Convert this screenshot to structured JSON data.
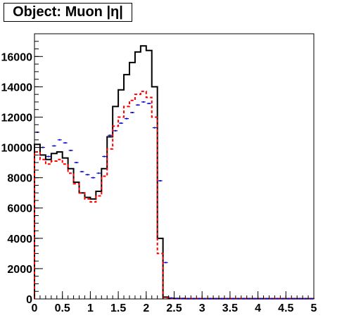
{
  "chart_data": {
    "type": "histogram",
    "title": "Object: Muon |η|",
    "xlabel": "",
    "ylabel": "",
    "xlim": [
      0,
      5
    ],
    "ylim": [
      0,
      17500
    ],
    "bin_width": 0.1,
    "x_ticks": [
      "0",
      "0.5",
      "1",
      "1.5",
      "2",
      "2.5",
      "3",
      "3.5",
      "4",
      "4.5",
      "5"
    ],
    "y_ticks": [
      "0",
      "2000",
      "4000",
      "6000",
      "8000",
      "10000",
      "12000",
      "14000",
      "16000"
    ],
    "x_tick_values": [
      0,
      0.5,
      1,
      1.5,
      2,
      2.5,
      3,
      3.5,
      4,
      4.5,
      5
    ],
    "y_tick_values": [
      0,
      2000,
      4000,
      6000,
      8000,
      10000,
      12000,
      14000,
      16000
    ],
    "grid": false,
    "series": [
      {
        "style": "solid",
        "color": "#000000",
        "values": [
          10200,
          9500,
          9200,
          9600,
          9700,
          9300,
          8600,
          7700,
          7000,
          6700,
          6600,
          7100,
          8600,
          10700,
          12700,
          13800,
          14800,
          15600,
          16300,
          16700,
          16400,
          14000,
          4000,
          120,
          40,
          30,
          30,
          20,
          20,
          20,
          20,
          20,
          20,
          20,
          20,
          20,
          20,
          20,
          20,
          20,
          20,
          20,
          20,
          20,
          20,
          20,
          20,
          20,
          20,
          20
        ]
      },
      {
        "style": "dashed",
        "color": "#ff0000",
        "values": [
          9700,
          9200,
          8900,
          9100,
          9200,
          8900,
          8300,
          7600,
          7000,
          6600,
          6400,
          6800,
          8100,
          9900,
          11400,
          12000,
          12700,
          13100,
          13500,
          13700,
          13300,
          12000,
          3000,
          80,
          30,
          20,
          20,
          20,
          20,
          20,
          20,
          20,
          20,
          20,
          20,
          20,
          20,
          20,
          20,
          20,
          20,
          20,
          20,
          20,
          20,
          20,
          20,
          20,
          20,
          20
        ]
      },
      {
        "style": "points",
        "color": "#0000cc",
        "values": [
          11000,
          10000,
          9400,
          10100,
          10500,
          10300,
          9800,
          9000,
          8400,
          8200,
          8000,
          8300,
          9400,
          10800,
          11100,
          11600,
          11900,
          12300,
          12800,
          13000,
          12900,
          11300,
          7800,
          2400,
          60,
          30,
          20,
          20,
          20,
          20,
          20,
          20,
          20,
          20,
          20,
          20,
          20,
          20,
          20,
          20,
          20,
          20,
          20,
          20,
          20,
          20,
          20,
          20,
          20,
          20
        ]
      }
    ]
  }
}
